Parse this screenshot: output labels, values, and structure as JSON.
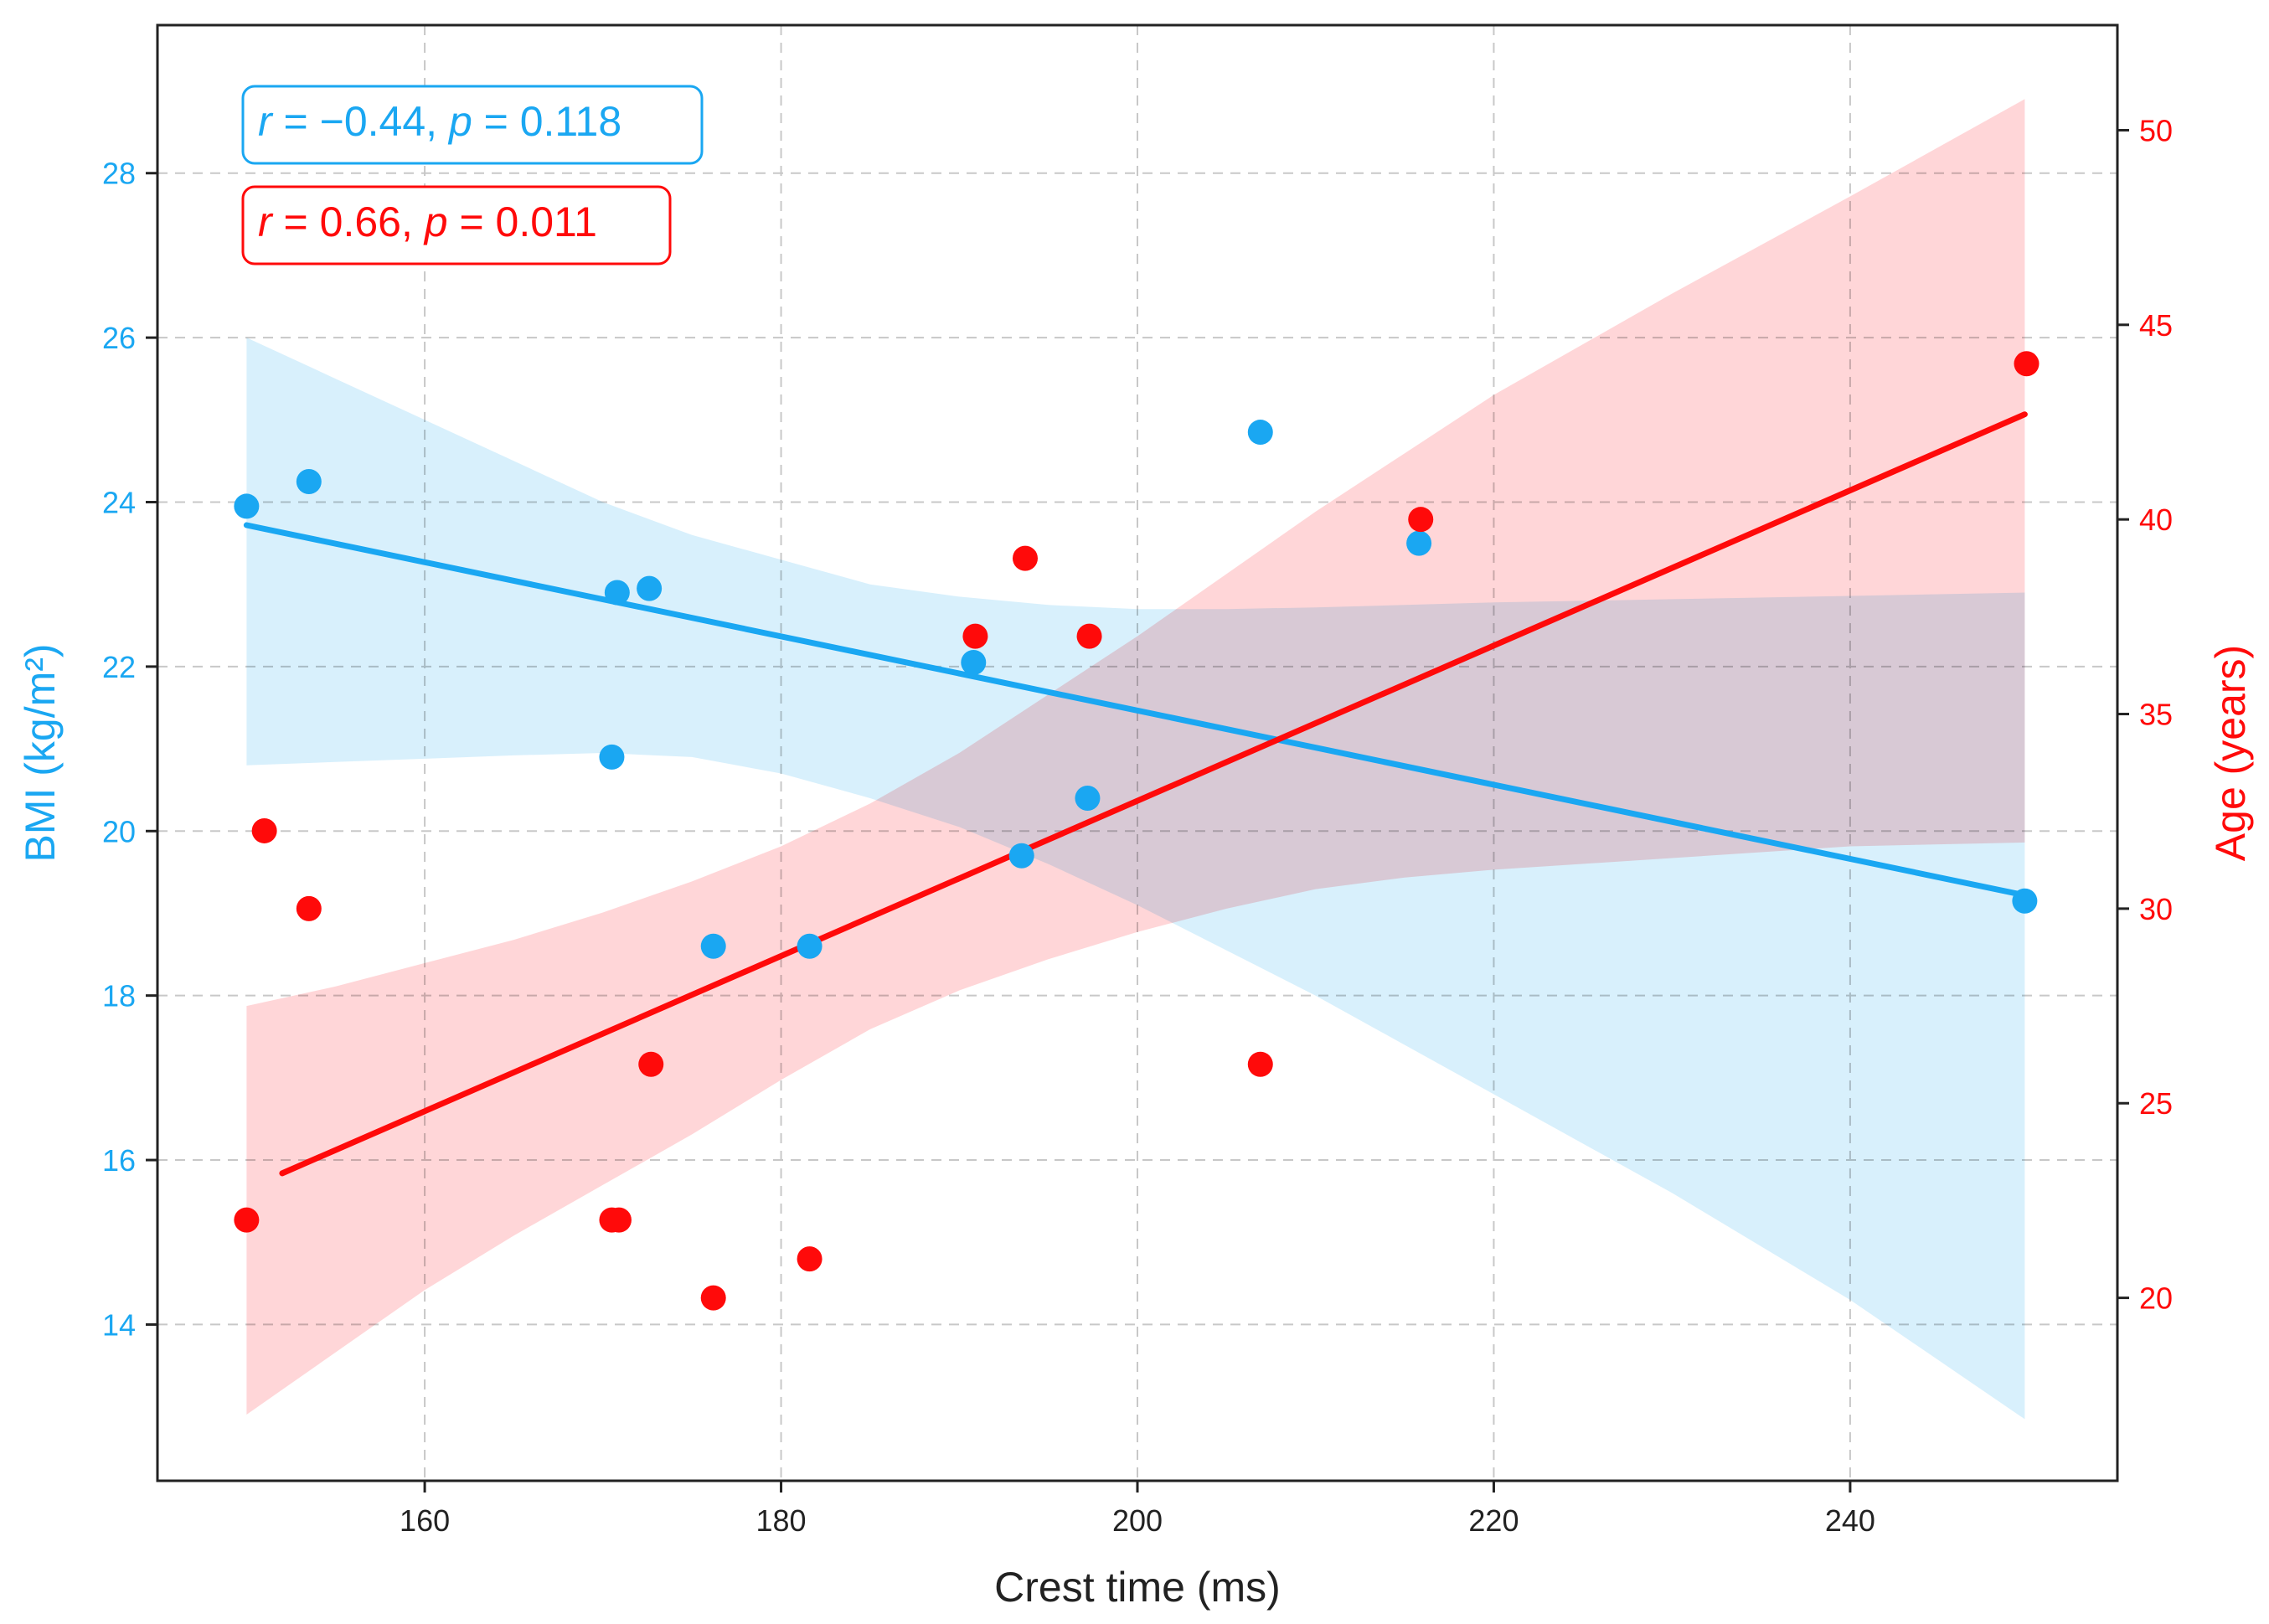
{
  "chart_data": {
    "type": "scatter",
    "title": "",
    "xlabel": "Crest time (ms)",
    "ylabel_left": "BMI (kg/m²)",
    "ylabel_right": "Age (years)",
    "xlim": [
      145,
      255
    ],
    "ylim_left": [
      12.1,
      29.8
    ],
    "ylim_right": [
      15.3,
      52.7
    ],
    "xticks": [
      160,
      180,
      200,
      220,
      240
    ],
    "yticks_left": [
      14,
      16,
      18,
      20,
      22,
      24,
      26,
      28
    ],
    "yticks_right": [
      20,
      25,
      30,
      35,
      40,
      45,
      50
    ],
    "grid": true,
    "colors": {
      "bmi": "#1aa7f2",
      "bmi_fill": "#d6effc",
      "age": "#ff0a0a",
      "age_fill": "#ffcfd1",
      "overlap_point": "#2f8ad6",
      "axis": "#222222"
    },
    "series": [
      {
        "name": "BMI",
        "axis": "left",
        "points": [
          {
            "x": 150.0,
            "y": 23.95
          },
          {
            "x": 153.5,
            "y": 24.25
          },
          {
            "x": 170.5,
            "y": 20.9
          },
          {
            "x": 170.8,
            "y": 22.9
          },
          {
            "x": 172.6,
            "y": 22.95
          },
          {
            "x": 176.2,
            "y": 18.6
          },
          {
            "x": 181.6,
            "y": 18.6
          },
          {
            "x": 190.8,
            "y": 22.05
          },
          {
            "x": 193.5,
            "y": 19.7
          },
          {
            "x": 197.2,
            "y": 20.4
          },
          {
            "x": 206.9,
            "y": 24.85
          },
          {
            "x": 215.8,
            "y": 23.5
          },
          {
            "x": 249.8,
            "y": 19.15
          }
        ],
        "fit": {
          "x0": 150.0,
          "y0": 23.72,
          "x1": 249.8,
          "y1": 19.22
        },
        "band": {
          "x": [
            150,
            155,
            160,
            165,
            170,
            175,
            180,
            185,
            190,
            195,
            200,
            205,
            210,
            215,
            220,
            230,
            240,
            249.8
          ],
          "lower": [
            20.8,
            20.84,
            20.88,
            20.92,
            20.95,
            20.9,
            20.7,
            20.4,
            20.05,
            19.6,
            19.1,
            18.55,
            18.0,
            17.4,
            16.8,
            15.6,
            14.3,
            12.85
          ],
          "upper": [
            26.0,
            25.5,
            25.0,
            24.5,
            24.0,
            23.6,
            23.3,
            23.0,
            22.85,
            22.75,
            22.7,
            22.7,
            22.72,
            22.75,
            22.78,
            22.82,
            22.86,
            22.9
          ]
        }
      },
      {
        "name": "Age",
        "axis": "right",
        "points": [
          {
            "x": 150.0,
            "y": 22
          },
          {
            "x": 151.0,
            "y": 32
          },
          {
            "x": 153.5,
            "y": 30
          },
          {
            "x": 170.5,
            "y": 22
          },
          {
            "x": 170.9,
            "y": 22
          },
          {
            "x": 172.7,
            "y": 26
          },
          {
            "x": 176.2,
            "y": 20
          },
          {
            "x": 181.6,
            "y": 21
          },
          {
            "x": 190.9,
            "y": 37
          },
          {
            "x": 193.7,
            "y": 39
          },
          {
            "x": 197.3,
            "y": 37
          },
          {
            "x": 206.9,
            "y": 26
          },
          {
            "x": 215.9,
            "y": 40
          },
          {
            "x": 249.9,
            "y": 44
          }
        ],
        "fit": {
          "x0": 152.0,
          "y0": 23.2,
          "x1": 249.8,
          "y1": 42.7
        },
        "band": {
          "x": [
            150,
            155,
            160,
            165,
            170,
            175,
            180,
            185,
            190,
            195,
            200,
            205,
            210,
            215,
            220,
            230,
            240,
            249.8
          ],
          "lower": [
            17.0,
            18.6,
            20.2,
            21.6,
            22.9,
            24.2,
            25.6,
            26.9,
            27.9,
            28.7,
            29.4,
            30.0,
            30.5,
            30.8,
            31.0,
            31.3,
            31.6,
            31.7
          ],
          "upper": [
            27.5,
            28.0,
            28.6,
            29.2,
            29.9,
            30.7,
            31.6,
            32.7,
            34.0,
            35.5,
            37.0,
            38.6,
            40.2,
            41.7,
            43.2,
            45.8,
            48.3,
            50.8
          ]
        }
      }
    ],
    "annotations": [
      {
        "series": "BMI",
        "r_symbol": "r",
        "r_text": " = −0.44, ",
        "p_symbol": "p",
        "p_text": " = 0.118"
      },
      {
        "series": "Age",
        "r_symbol": "r",
        "r_text": " = 0.66, ",
        "p_symbol": "p",
        "p_text": " = 0.011"
      }
    ]
  }
}
